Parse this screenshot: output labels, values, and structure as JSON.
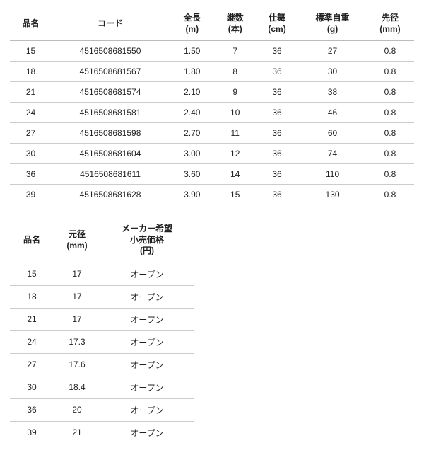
{
  "table1": {
    "columns": [
      "品名",
      "コード",
      "全長\n(m)",
      "継数\n(本)",
      "仕舞\n(cm)",
      "標準自重\n(g)",
      "先径\n(mm)"
    ],
    "rows": [
      [
        "15",
        "4516508681550",
        "1.50",
        "7",
        "36",
        "27",
        "0.8"
      ],
      [
        "18",
        "4516508681567",
        "1.80",
        "8",
        "36",
        "30",
        "0.8"
      ],
      [
        "21",
        "4516508681574",
        "2.10",
        "9",
        "36",
        "38",
        "0.8"
      ],
      [
        "24",
        "4516508681581",
        "2.40",
        "10",
        "36",
        "46",
        "0.8"
      ],
      [
        "27",
        "4516508681598",
        "2.70",
        "11",
        "36",
        "60",
        "0.8"
      ],
      [
        "30",
        "4516508681604",
        "3.00",
        "12",
        "36",
        "74",
        "0.8"
      ],
      [
        "36",
        "4516508681611",
        "3.60",
        "14",
        "36",
        "110",
        "0.8"
      ],
      [
        "39",
        "4516508681628",
        "3.90",
        "15",
        "36",
        "130",
        "0.8"
      ]
    ]
  },
  "table2": {
    "columns": [
      "品名",
      "元径\n(mm)",
      "メーカー希望\n小売価格\n(円)"
    ],
    "rows": [
      [
        "15",
        "17",
        "オープン"
      ],
      [
        "18",
        "17",
        "オープン"
      ],
      [
        "21",
        "17",
        "オープン"
      ],
      [
        "24",
        "17.3",
        "オープン"
      ],
      [
        "27",
        "17.6",
        "オープン"
      ],
      [
        "30",
        "18.4",
        "オープン"
      ],
      [
        "36",
        "20",
        "オープン"
      ],
      [
        "39",
        "21",
        "オープン"
      ]
    ]
  },
  "style": {
    "background_color": "#ffffff",
    "border_color": "#cccccc",
    "text_color": "#222222",
    "header_fontsize": 12,
    "cell_fontsize": 12
  }
}
